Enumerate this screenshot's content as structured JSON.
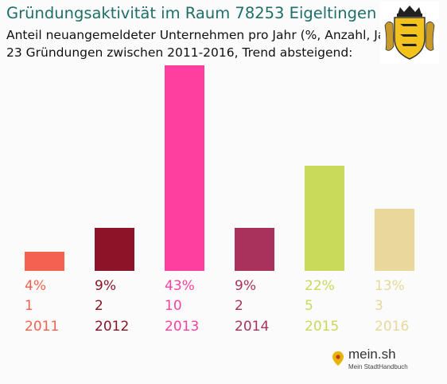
{
  "chart_data": {
    "type": "bar",
    "title": "Gründungsaktivität im Raum 78253 Eigeltingen",
    "subtitle_line1": "Anteil neuangemeldeter Unternehmen pro Jahr (%, Anzahl, Jahr)",
    "subtitle_line2": "23 Gründungen zwischen 2011-2016, Trend absteigend:",
    "categories": [
      "2011",
      "2012",
      "2013",
      "2014",
      "2015",
      "2016"
    ],
    "values": [
      4,
      9,
      43,
      9,
      22,
      13
    ],
    "value_labels": [
      "4%",
      "9%",
      "43%",
      "9%",
      "22%",
      "13%"
    ],
    "counts": [
      "1",
      "2",
      "10",
      "2",
      "5",
      "3"
    ],
    "colors": [
      "#f56150",
      "#8c1428",
      "#ff3f9f",
      "#a9325d",
      "#c9d95a",
      "#e8d89b"
    ],
    "ylim": [
      0,
      43
    ],
    "grid": false,
    "legend": "none"
  },
  "logo": {
    "name": "coat-of-arms-icon"
  },
  "brand": {
    "name": "mein.sh",
    "tagline": "Mein StadtHandbuch",
    "icon": "location-pin-icon"
  }
}
